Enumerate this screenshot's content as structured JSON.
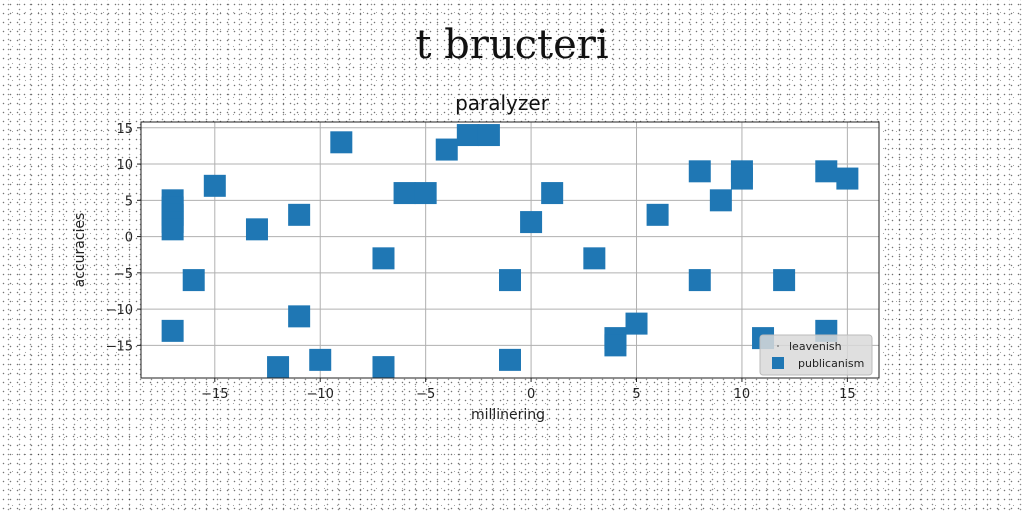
{
  "figure_title": "t bructeri",
  "chart_data": {
    "type": "scatter",
    "title": "paralyzer",
    "xlabel": "millinering",
    "ylabel": "accuracies",
    "xlim": [
      -18.5,
      16.5
    ],
    "ylim": [
      -19.5,
      15.8
    ],
    "xticks": [
      -15,
      -10,
      -5,
      0,
      5,
      10,
      15
    ],
    "yticks": [
      -15,
      -10,
      -5,
      0,
      5,
      10,
      15
    ],
    "xtick_labels": [
      "−15",
      "−10",
      "−5",
      "0",
      "5",
      "10",
      "15"
    ],
    "ytick_labels": [
      "−15",
      "−10",
      "−5",
      "0",
      "5",
      "10",
      "15"
    ],
    "grid": true,
    "legend_position": "bottom-right",
    "series": [
      {
        "name": "leavenish",
        "marker": "point",
        "color": "#888888",
        "points": []
      },
      {
        "name": "publicanism",
        "marker": "square",
        "color": "#1f77b4",
        "points": [
          [
            -17,
            5
          ],
          [
            -17,
            4
          ],
          [
            -17,
            3
          ],
          [
            -17,
            2
          ],
          [
            -17,
            1
          ],
          [
            -17,
            -13
          ],
          [
            -16,
            -6
          ],
          [
            -15,
            7
          ],
          [
            -13,
            1
          ],
          [
            -12,
            -18
          ],
          [
            -11,
            3
          ],
          [
            -11,
            -11
          ],
          [
            -10,
            -17
          ],
          [
            -9,
            13
          ],
          [
            -7,
            -3
          ],
          [
            -7,
            -18
          ],
          [
            -6,
            6
          ],
          [
            -5,
            6
          ],
          [
            -4,
            12
          ],
          [
            -3,
            14
          ],
          [
            -2,
            14
          ],
          [
            -1,
            -6
          ],
          [
            -1,
            -17
          ],
          [
            0,
            2
          ],
          [
            1,
            6
          ],
          [
            3,
            -3
          ],
          [
            4,
            -14
          ],
          [
            4,
            -15
          ],
          [
            5,
            -12
          ],
          [
            6,
            3
          ],
          [
            8,
            9
          ],
          [
            8,
            -6
          ],
          [
            9,
            5
          ],
          [
            10,
            9
          ],
          [
            10,
            8
          ],
          [
            11,
            -14
          ],
          [
            12,
            -6
          ],
          [
            14,
            9
          ],
          [
            14,
            -13
          ],
          [
            15,
            8
          ]
        ]
      }
    ]
  }
}
